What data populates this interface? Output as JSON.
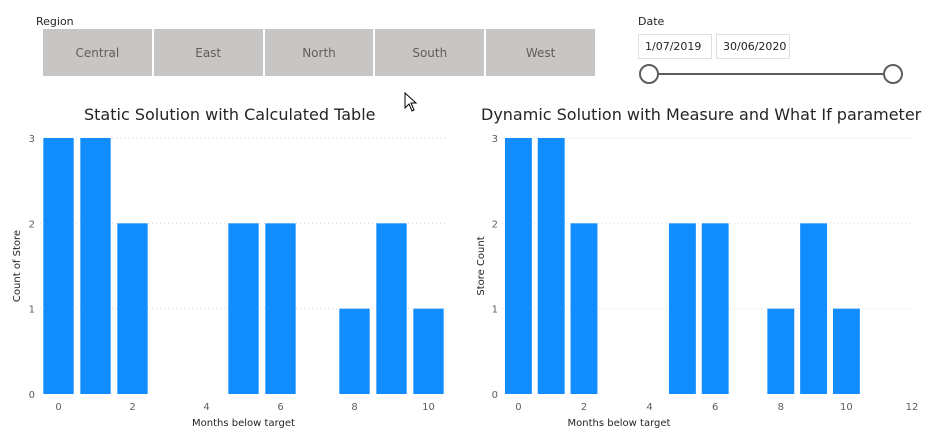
{
  "region_slicer": {
    "label": "Region",
    "items": [
      "Central",
      "East",
      "North",
      "South",
      "West"
    ]
  },
  "date_slicer": {
    "label": "Date",
    "start": "1/07/2019",
    "end": "30/06/2020"
  },
  "colors": {
    "bar": "#118dff",
    "tile": "#c8c6c4",
    "grid": "#d9d9d9",
    "slider": "#605e5c"
  },
  "chart_data": [
    {
      "type": "bar",
      "title": "Static Solution with Calculated Table",
      "xlabel": "Months below target",
      "ylabel": "Count of Store",
      "x": [
        0,
        1,
        2,
        5,
        6,
        8,
        9,
        10
      ],
      "values": [
        3,
        3,
        2,
        2,
        2,
        1,
        2,
        1
      ],
      "xlim": [
        -0.5,
        10.5
      ],
      "ylim": [
        0,
        3
      ],
      "xticks": [
        0,
        2,
        4,
        6,
        8,
        10
      ],
      "yticks": [
        0,
        1,
        2,
        3
      ],
      "grid": true
    },
    {
      "type": "bar",
      "title": "Dynamic Solution with Measure and What If parameter",
      "xlabel": "Months below target",
      "ylabel": "Store Count",
      "x": [
        0,
        1,
        2,
        5,
        6,
        8,
        9,
        10
      ],
      "values": [
        3,
        3,
        2,
        2,
        2,
        1,
        2,
        1
      ],
      "xlim": [
        -0.5,
        12
      ],
      "ylim": [
        0,
        3
      ],
      "xticks": [
        0,
        2,
        4,
        6,
        8,
        10,
        12
      ],
      "yticks": [
        0,
        1,
        2,
        3
      ],
      "grid": true
    }
  ]
}
